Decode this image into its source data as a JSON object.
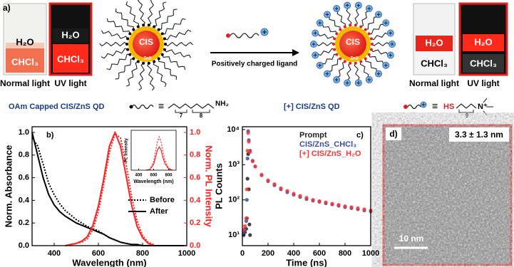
{
  "panel_a": {
    "label": "a)",
    "vials": [
      {
        "top": "H₂O",
        "bottom": "CHCl₃"
      },
      {
        "top": "H₂O",
        "bottom": "CHCl₃"
      },
      {
        "top": "H₂O",
        "bottom": "CHCl₃"
      },
      {
        "top": "H₂O",
        "bottom": "CHCl₃"
      }
    ],
    "captions": [
      "Normal light",
      "UV light",
      "Normal light",
      "UV light"
    ],
    "qd_left": {
      "core": "CIS",
      "shell": "ZnS"
    },
    "qd_right": {
      "core": "CIS",
      "shell": "ZnS"
    },
    "arrow_label": "Positively charged ligand",
    "left_title": "OAm Capped CIS/ZnS QD",
    "right_title": "[+] CIS/ZnS QD",
    "left_formula": {
      "equiv": "≡",
      "n1": "7",
      "n2": "8",
      "end": "NH₂"
    },
    "right_formula": {
      "equiv": "≡",
      "start": "HS",
      "n": "9",
      "end": "N⁺"
    }
  },
  "chart_data": [
    {
      "type": "line",
      "label": "b)",
      "xlabel": "Wavelength (nm)",
      "ylabel": "Norm. Absorbance",
      "y2label": "Norm. PL Intensity",
      "x": [
        300,
        325,
        350,
        375,
        400,
        425,
        450,
        475,
        500,
        525,
        550,
        575,
        600,
        625,
        650,
        675,
        700,
        725,
        750,
        775,
        800,
        825,
        850,
        875,
        900,
        925,
        950,
        975,
        1000
      ],
      "xlim": [
        300,
        1000
      ],
      "xticks": [
        400,
        600,
        800,
        1000
      ],
      "ylim": [
        0,
        1.05
      ],
      "yticks": [
        {
          "value": 0,
          "label": "0.0"
        },
        0.2,
        0.4,
        0.6,
        0.8,
        {
          "value": 1,
          "label": "1.0"
        }
      ],
      "y2lim": [
        0,
        1.05
      ],
      "y2ticks": [
        {
          "value": 0,
          "label": "0.0"
        },
        0.2,
        0.4,
        0.6,
        0.8,
        {
          "value": 1,
          "label": "1.0"
        }
      ],
      "axis_color": "#000000",
      "y2_color": "#ff2020",
      "series": [
        {
          "name": "Before",
          "color": "#000000",
          "line_style": "dotted",
          "values": [
            0.95,
            0.88,
            0.72,
            0.55,
            0.45,
            0.37,
            0.31,
            0.27,
            0.23,
            0.2,
            0.17,
            0.15,
            0.13,
            0.1,
            0.07,
            0.05,
            0.03,
            0.02,
            0.01,
            0.01,
            0,
            0,
            0,
            0,
            0,
            0,
            0,
            0,
            0
          ]
        },
        {
          "name": "After",
          "color": "#000000",
          "line_style": "solid",
          "values": [
            1.0,
            0.8,
            0.6,
            0.45,
            0.36,
            0.3,
            0.26,
            0.23,
            0.2,
            0.18,
            0.16,
            0.14,
            0.12,
            0.1,
            0.07,
            0.05,
            0.03,
            0.02,
            0.01,
            0.01,
            0,
            0,
            0,
            0,
            0,
            0,
            0,
            0,
            0
          ]
        },
        {
          "color": "#ff2020",
          "line_style": "dotted",
          "axis": "y2",
          "values": [
            null,
            null,
            null,
            null,
            null,
            null,
            0,
            0.01,
            0.02,
            0.03,
            0.06,
            0.14,
            0.3,
            0.55,
            0.82,
            0.99,
            0.95,
            0.72,
            0.44,
            0.22,
            0.09,
            0.03,
            0.01,
            null,
            null,
            null,
            null,
            null,
            null
          ]
        },
        {
          "color": "#ff2020",
          "line_style": "solid",
          "axis": "y2",
          "values": [
            null,
            null,
            null,
            null,
            null,
            null,
            0,
            0.01,
            0.02,
            0.04,
            0.08,
            0.18,
            0.35,
            0.6,
            0.88,
            1.0,
            0.88,
            0.62,
            0.36,
            0.17,
            0.07,
            0.02,
            0,
            null,
            null,
            null,
            null,
            null,
            null
          ]
        }
      ]
    },
    {
      "type": "line",
      "xlabel": "Wavelength (nm)",
      "ylabel": "PL Intensity",
      "x": [
        500,
        550,
        600,
        625,
        650,
        675,
        700,
        725,
        750,
        800,
        850
      ],
      "xlim": [
        300,
        900
      ],
      "xticks": [
        400,
        600,
        800
      ],
      "ylim": [
        0,
        1.2
      ],
      "series": [
        {
          "color": "#ff2020",
          "line_style": "dotted",
          "values": [
            0,
            0.03,
            0.25,
            0.55,
            0.85,
            1.0,
            0.85,
            0.55,
            0.3,
            0.06,
            0
          ]
        },
        {
          "color": "#ff2020",
          "line_style": "solid",
          "values": [
            0,
            0.02,
            0.17,
            0.38,
            0.6,
            0.7,
            0.6,
            0.38,
            0.2,
            0.04,
            0
          ]
        }
      ]
    },
    {
      "type": "scatter",
      "label": "c)",
      "xlabel": "Time (ns)",
      "ylabel": "PL Counts",
      "xlim": [
        0,
        1000
      ],
      "xticks": [
        0,
        200,
        400,
        600,
        800,
        1000
      ],
      "ylim": [
        5,
        12000
      ],
      "yscale": "log",
      "yticks": [
        {
          "value": 10,
          "label": "10¹"
        },
        {
          "value": 100,
          "label": "10²"
        },
        {
          "value": 1000,
          "label": "10³"
        },
        {
          "value": 10000,
          "label": "10⁴"
        }
      ],
      "series": [
        {
          "name": "Prompt",
          "color": "#222222",
          "x": [
            10,
            20,
            30,
            35,
            40,
            45,
            50,
            55,
            60
          ],
          "values": [
            10,
            12,
            15,
            30,
            400,
            2000,
            200,
            20,
            10
          ]
        },
        {
          "name": "CIS/ZnS_CHCl₃",
          "color": "#3a4fa0",
          "x": [
            10,
            20,
            30,
            35,
            40,
            45,
            50,
            60,
            80,
            100,
            150,
            200,
            250,
            300,
            350,
            400,
            450,
            500,
            550,
            600,
            650,
            700,
            750,
            800,
            850,
            900,
            950,
            1000
          ],
          "values": [
            12,
            15,
            25,
            100,
            1500,
            9000,
            5000,
            2500,
            1300,
            900,
            500,
            340,
            260,
            200,
            165,
            140,
            120,
            105,
            95,
            88,
            80,
            74,
            68,
            62,
            58,
            54,
            50,
            47
          ]
        },
        {
          "name": "[+] CIS/ZnS_H₂O",
          "color": "#ff3333",
          "x": [
            10,
            20,
            30,
            35,
            40,
            45,
            50,
            60,
            80,
            100,
            150,
            200,
            250,
            300,
            350,
            400,
            450,
            500,
            550,
            600,
            650,
            700,
            750,
            800,
            850,
            900,
            950,
            1000
          ],
          "values": [
            14,
            18,
            30,
            200,
            2500,
            8000,
            4500,
            2300,
            1250,
            880,
            520,
            360,
            280,
            215,
            180,
            150,
            130,
            115,
            100,
            92,
            85,
            78,
            72,
            66,
            62,
            58,
            54,
            50
          ]
        }
      ]
    }
  ],
  "panel_d": {
    "label": "d)",
    "size": "3.3 ± 1.3 nm",
    "scale_bar": "10 nm"
  }
}
